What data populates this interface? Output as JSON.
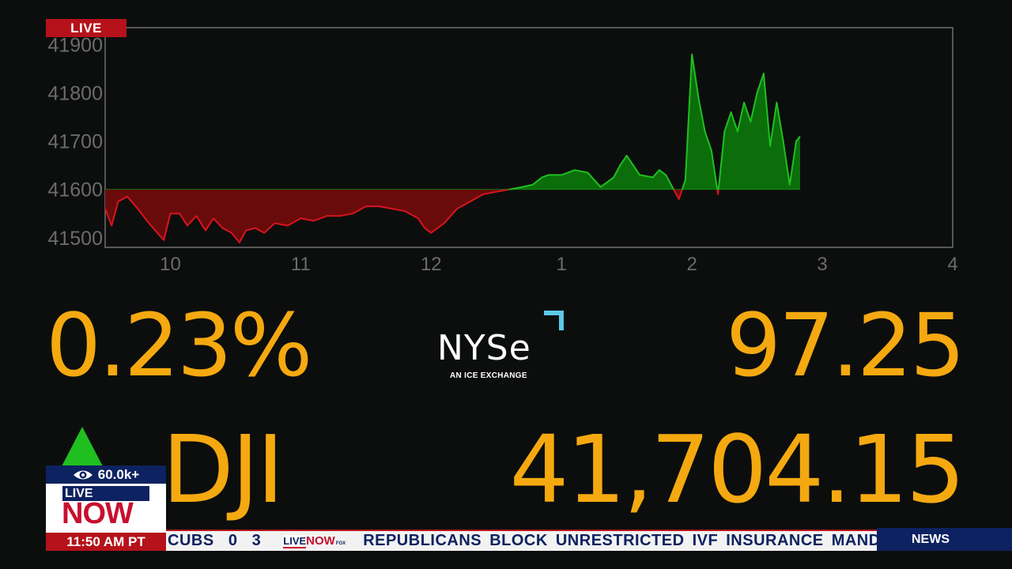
{
  "live_badge": "LIVE",
  "chart_data": {
    "type": "area",
    "baseline": 41600,
    "ylim": [
      41480,
      41935
    ],
    "xlim": [
      9.5,
      16
    ],
    "y_ticks": [
      41900,
      41800,
      41700,
      41600,
      41500
    ],
    "x_ticks": [
      10,
      11,
      12,
      13,
      14,
      15,
      16
    ],
    "x_tick_labels": [
      "10",
      "11",
      "12",
      "1",
      "2",
      "3",
      "4"
    ],
    "grid": false,
    "colors": {
      "up": "#1fbf1f",
      "up_fill": "#0b6e0b",
      "down": "#d7151f",
      "down_fill": "#6a0b0b",
      "frame": "#6e6e6e",
      "tick_text": "#6b6b6b"
    },
    "x": [
      9.5,
      9.55,
      9.6,
      9.67,
      9.75,
      9.82,
      9.9,
      9.95,
      10.0,
      10.07,
      10.13,
      10.2,
      10.27,
      10.33,
      10.4,
      10.47,
      10.53,
      10.58,
      10.65,
      10.72,
      10.8,
      10.9,
      11.0,
      11.1,
      11.2,
      11.3,
      11.4,
      11.5,
      11.6,
      11.7,
      11.8,
      11.9,
      11.95,
      12.0,
      12.05,
      12.1,
      12.15,
      12.2,
      12.3,
      12.4,
      12.5,
      12.6,
      12.7,
      12.78,
      12.85,
      12.9,
      13.0,
      13.1,
      13.2,
      13.3,
      13.4,
      13.45,
      13.5,
      13.6,
      13.7,
      13.75,
      13.8,
      13.85,
      13.9,
      13.95,
      14.0,
      14.05,
      14.1,
      14.15,
      14.2,
      14.25,
      14.3,
      14.35,
      14.4,
      14.45,
      14.5,
      14.55,
      14.6,
      14.65,
      14.7,
      14.75,
      14.8,
      14.83
    ],
    "y": [
      41560,
      41525,
      41575,
      41585,
      41560,
      41535,
      41510,
      41495,
      41550,
      41550,
      41525,
      41545,
      41515,
      41540,
      41520,
      41510,
      41490,
      41515,
      41520,
      41510,
      41530,
      41525,
      41540,
      41535,
      41545,
      41545,
      41550,
      41565,
      41565,
      41560,
      41555,
      41540,
      41520,
      41510,
      41520,
      41530,
      41545,
      41560,
      41575,
      41590,
      41595,
      41600,
      41605,
      41610,
      41625,
      41630,
      41630,
      41640,
      41635,
      41605,
      41625,
      41650,
      41670,
      41630,
      41625,
      41640,
      41630,
      41605,
      41580,
      41620,
      41880,
      41790,
      41720,
      41680,
      41590,
      41720,
      41760,
      41720,
      41780,
      41740,
      41800,
      41840,
      41690,
      41780,
      41700,
      41610,
      41700,
      41710
    ]
  },
  "stats": {
    "percent_change": "0.23%",
    "point_change": "97.25",
    "symbol": "DJI",
    "price": "41,704.15",
    "direction": "up",
    "arrow_color": "#1fbf1f"
  },
  "nyse_logo": {
    "wordmark": "NYSe",
    "tagline": "AN ICE EXCHANGE",
    "accent": "#5cc8e6"
  },
  "overlay": {
    "viewer_count": "60.0k+",
    "live_label": "LIVE",
    "now_label": "NOW",
    "time": "11:50 AM PT"
  },
  "ticker": {
    "score": "CUBS   0   3",
    "logo_live": "LIVE",
    "logo_now": "NOW",
    "logo_fox": "FOX",
    "headline": "REPUBLICANS BLOCK UNRESTRICTED IVF INSURANCE MAND",
    "section": "NEWS"
  },
  "brand_colors": {
    "accent": "#f5a910",
    "navy": "#0d2260",
    "red": "#b5121b"
  }
}
